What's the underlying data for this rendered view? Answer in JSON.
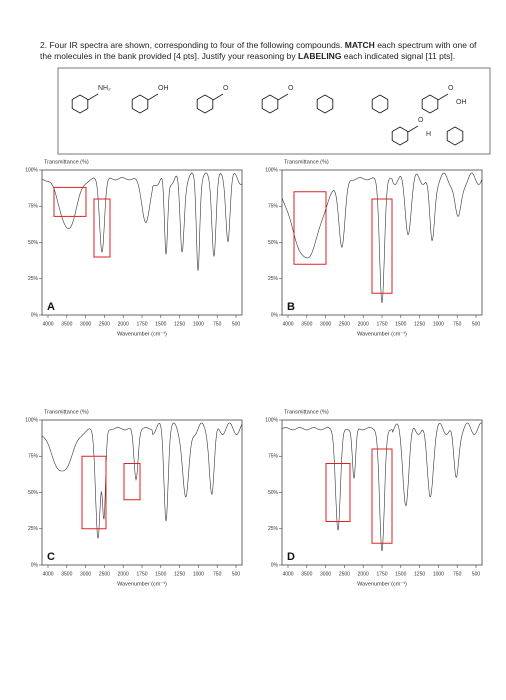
{
  "question": {
    "number": "2.",
    "text1": "Four IR spectra are shown, corresponding to four of the following compounds. ",
    "emph1": "MATCH",
    "text2": " each spectrum with one of the molecules in the bank provided [4 pts]. Justify your reasoning by ",
    "emph2": "LABELING",
    "text3": " each indicated signal [11 pts]."
  },
  "molecules": [
    {
      "labels": [
        "NH₂"
      ]
    },
    {
      "labels": [
        "OH"
      ]
    },
    {
      "labels": [
        "O"
      ]
    },
    {
      "labels": [
        "O"
      ]
    },
    {
      "labels": []
    },
    {
      "labels": []
    },
    {
      "labels": [
        "O",
        "OH"
      ]
    },
    {
      "labels": [
        "O",
        "H"
      ]
    },
    {
      "labels": []
    }
  ],
  "spectra": [
    {
      "label": "A",
      "y_axis_title": "Transmittance (%)",
      "yticks": [
        "100%",
        "75%",
        "50%",
        "25%",
        "0%"
      ],
      "xticks": [
        "4000",
        "3500",
        "3000",
        "2500",
        "2000",
        "1750",
        "1500",
        "1250",
        "1000",
        "750",
        "500"
      ],
      "x_axis_title": "Wavenumber (cm⁻¹)"
    },
    {
      "label": "B",
      "y_axis_title": "Transmittance (%)",
      "yticks": [
        "100%",
        "75%",
        "50%",
        "25%",
        "0%"
      ],
      "xticks": [
        "4000",
        "3500",
        "3000",
        "2500",
        "2000",
        "1750",
        "1500",
        "1250",
        "1000",
        "750",
        "500"
      ],
      "x_axis_title": "Wavenumber (cm⁻¹)"
    },
    {
      "label": "C",
      "y_axis_title": "Transmittance (%)",
      "yticks": [
        "100%",
        "75%",
        "50%",
        "25%",
        "0%"
      ],
      "xticks": [
        "4000",
        "3500",
        "3000",
        "2500",
        "2000",
        "1750",
        "1500",
        "1250",
        "1000",
        "750",
        "500"
      ],
      "x_axis_title": "Wavenumber (cm⁻¹)"
    },
    {
      "label": "D",
      "y_axis_title": "Transmittance (%)",
      "yticks": [
        "100%",
        "75%",
        "50%",
        "25%",
        "0%"
      ],
      "xticks": [
        "4000",
        "3500",
        "3000",
        "2500",
        "2000",
        "1750",
        "1500",
        "1250",
        "1000",
        "750",
        "500"
      ],
      "x_axis_title": "Wavenumber (cm⁻¹)"
    }
  ]
}
